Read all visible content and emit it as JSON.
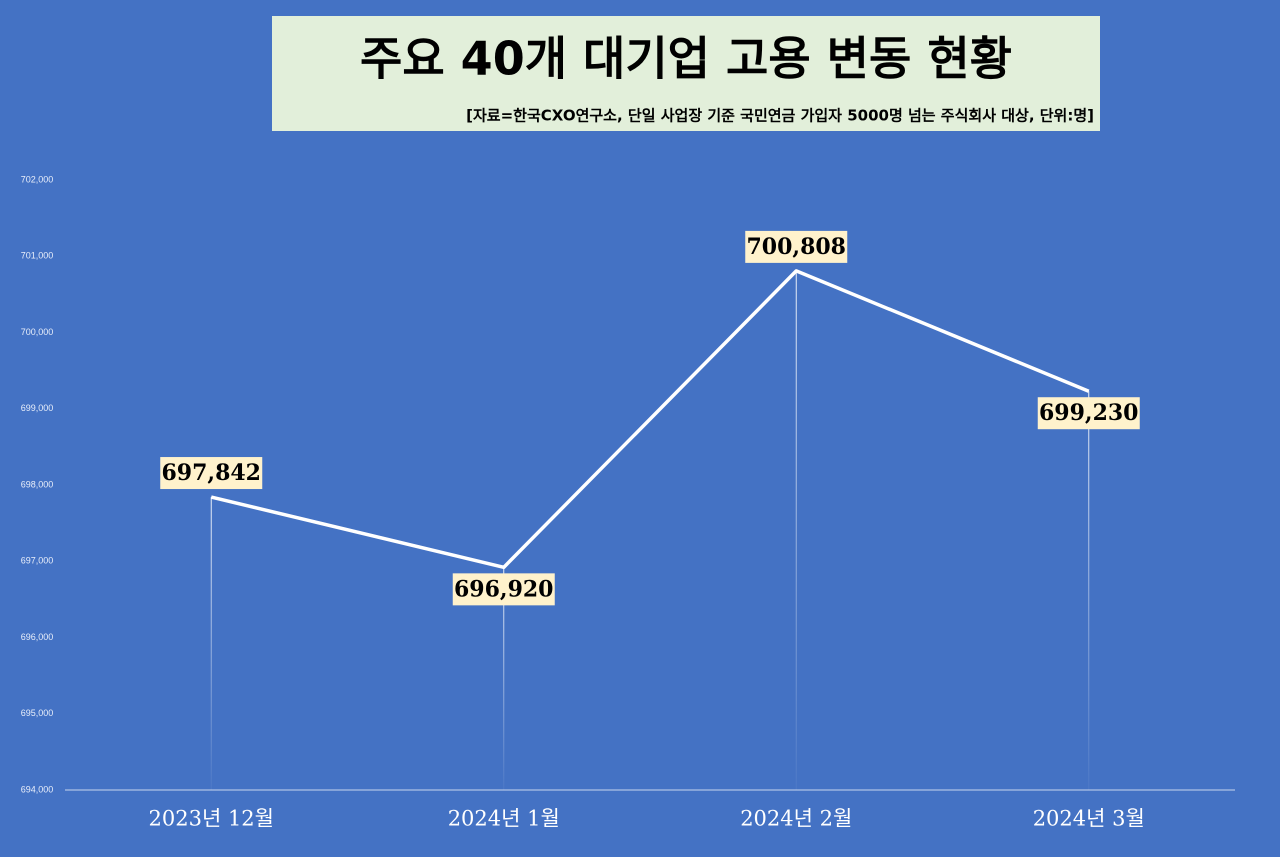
{
  "chart_data": {
    "type": "line",
    "title": "주요 40개 대기업 고용 변동 현황",
    "subtitle": "[자료=한국CXO연구소, 단일 사업장 기준 국민연금 가입자 5000명 넘는 주식회사 대상, 단위:명]",
    "categories": [
      "2023년 12월",
      "2024년 1월",
      "2024년 2월",
      "2024년 3월"
    ],
    "values": [
      697842,
      696920,
      700808,
      699230
    ],
    "value_labels": [
      "697,842",
      "696,920",
      "700,808",
      "699,230"
    ],
    "color": "#ffffff",
    "ylim": [
      694000,
      702000
    ],
    "yticks": [
      {
        "value": 694000,
        "label": "694,000"
      },
      {
        "value": 695000,
        "label": "695,000"
      },
      {
        "value": 696000,
        "label": "696,000"
      },
      {
        "value": 697000,
        "label": "697,000"
      },
      {
        "value": 698000,
        "label": "698,000"
      },
      {
        "value": 699000,
        "label": "699,000"
      },
      {
        "value": 700000,
        "label": "700,000"
      },
      {
        "value": 701000,
        "label": "701,000"
      },
      {
        "value": 702000,
        "label": "702,000"
      }
    ],
    "grid": false
  }
}
